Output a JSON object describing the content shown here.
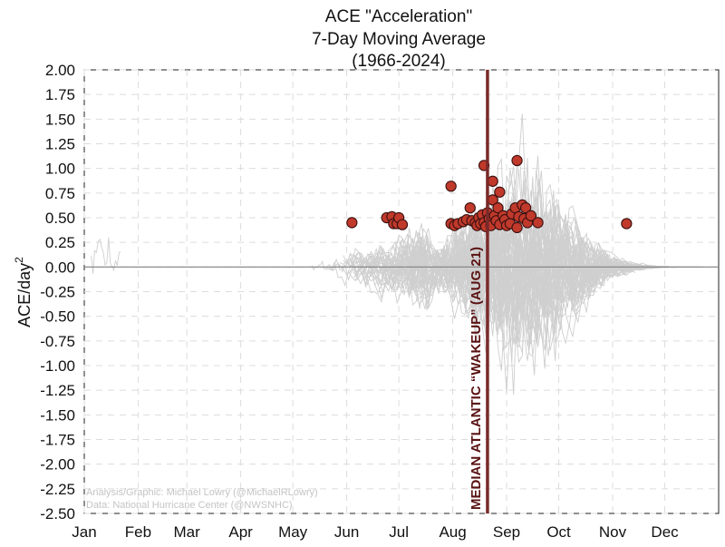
{
  "chart_data": {
    "type": "scatter",
    "title_lines": [
      "ACE \"Acceleration\"",
      "7-Day Moving Average",
      "(1966-2024)"
    ],
    "ylabel": "ACE/day",
    "ylabel_sup": "2",
    "ylim": [
      -2.5,
      2.0
    ],
    "yticks": [
      "2.00",
      "1.75",
      "1.50",
      "1.25",
      "1.00",
      "0.75",
      "0.50",
      "0.25",
      "0.00",
      "-0.25",
      "-0.50",
      "-0.75",
      "-1.00",
      "-1.25",
      "-1.50",
      "-1.75",
      "-2.00",
      "-2.25",
      "-2.50"
    ],
    "xlim": [
      1,
      366
    ],
    "x_months": [
      {
        "label": "Jan",
        "day": 1
      },
      {
        "label": "Feb",
        "day": 32
      },
      {
        "label": "Mar",
        "day": 60
      },
      {
        "label": "Apr",
        "day": 91
      },
      {
        "label": "May",
        "day": 121
      },
      {
        "label": "Jun",
        "day": 152
      },
      {
        "label": "Jul",
        "day": 182
      },
      {
        "label": "Aug",
        "day": 213
      },
      {
        "label": "Sep",
        "day": 244
      },
      {
        "label": "Oct",
        "day": 274
      },
      {
        "label": "Nov",
        "day": 305
      },
      {
        "label": "Dec",
        "day": 335
      }
    ],
    "grid": true,
    "wakeup_day": 233,
    "wakeup_label": "MEDIAN ATLANTIC “WAKEUP” (AUG 21)",
    "colors": {
      "points": "#c0392b",
      "point_edge": "#3a1010",
      "wakeup_line": "#7a2a2a",
      "traces": "#cfcfcf",
      "zero_line": "#808080",
      "grid": "#dcdcdc"
    },
    "series": [
      {
        "role": "first-season-peak",
        "points": [
          {
            "x": 155,
            "y": 0.45
          },
          {
            "x": 175,
            "y": 0.5
          },
          {
            "x": 178,
            "y": 0.51
          },
          {
            "x": 179,
            "y": 0.44
          },
          {
            "x": 181,
            "y": 0.44
          },
          {
            "x": 182,
            "y": 0.5
          },
          {
            "x": 184,
            "y": 0.43
          },
          {
            "x": 212,
            "y": 0.82
          },
          {
            "x": 212,
            "y": 0.44
          },
          {
            "x": 214,
            "y": 0.42
          },
          {
            "x": 216,
            "y": 0.44
          },
          {
            "x": 219,
            "y": 0.46
          },
          {
            "x": 221,
            "y": 0.48
          },
          {
            "x": 223,
            "y": 0.6
          },
          {
            "x": 224,
            "y": 0.47
          },
          {
            "x": 226,
            "y": 0.45
          },
          {
            "x": 227,
            "y": 0.42
          },
          {
            "x": 228,
            "y": 0.5
          },
          {
            "x": 229,
            "y": 0.44
          },
          {
            "x": 230,
            "y": 0.53
          },
          {
            "x": 231,
            "y": 1.03
          },
          {
            "x": 231,
            "y": 0.45
          },
          {
            "x": 232,
            "y": 0.41
          },
          {
            "x": 233,
            "y": 0.55
          },
          {
            "x": 234,
            "y": 0.49
          },
          {
            "x": 235,
            "y": 0.42
          },
          {
            "x": 236,
            "y": 0.87
          },
          {
            "x": 236,
            "y": 0.68
          },
          {
            "x": 237,
            "y": 0.52
          },
          {
            "x": 238,
            "y": 0.47
          },
          {
            "x": 239,
            "y": 0.6
          },
          {
            "x": 240,
            "y": 0.76
          },
          {
            "x": 240,
            "y": 0.43
          },
          {
            "x": 242,
            "y": 0.52
          },
          {
            "x": 243,
            "y": 0.48
          },
          {
            "x": 244,
            "y": 0.42
          },
          {
            "x": 246,
            "y": 0.44
          },
          {
            "x": 247,
            "y": 0.54
          },
          {
            "x": 249,
            "y": 0.6
          },
          {
            "x": 250,
            "y": 1.08
          },
          {
            "x": 250,
            "y": 0.4
          },
          {
            "x": 251,
            "y": 0.51
          },
          {
            "x": 253,
            "y": 0.63
          },
          {
            "x": 254,
            "y": 0.49
          },
          {
            "x": 255,
            "y": 0.6
          },
          {
            "x": 256,
            "y": 0.45
          },
          {
            "x": 258,
            "y": 0.52
          },
          {
            "x": 262,
            "y": 0.45
          },
          {
            "x": 313,
            "y": 0.44
          }
        ]
      }
    ]
  },
  "credit": {
    "line1": "Analysis/Graphic: Michael Lowry (@MichaelRLowry)",
    "line2": "Data: National Hurricane Center (@NWSNHC)"
  }
}
